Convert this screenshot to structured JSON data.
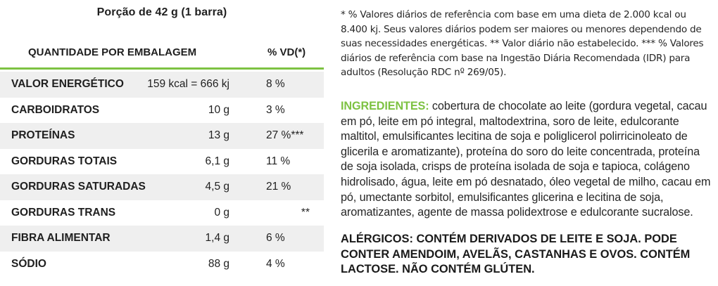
{
  "portion": "Porção de 42 g (1 barra)",
  "header": {
    "quantity": "QUANTIDADE POR EMBALAGEM",
    "vd": "% VD(*)"
  },
  "rows": [
    {
      "name": "VALOR ENERGÉTICO",
      "amount": "159 kcal = 666 kj",
      "vd": "8 %"
    },
    {
      "name": "CARBOIDRATOS",
      "amount": "10 g",
      "vd": "3 %"
    },
    {
      "name": "PROTEÍNAS",
      "amount": "13 g",
      "vd": "27 %***"
    },
    {
      "name": "GORDURAS TOTAIS",
      "amount": "6,1 g",
      "vd": "11 %"
    },
    {
      "name": "GORDURAS SATURADAS",
      "amount": "4,5 g",
      "vd": "21 %"
    },
    {
      "name": "GORDURAS TRANS",
      "amount": "0 g",
      "vd": "**"
    },
    {
      "name": "FIBRA ALIMENTAR",
      "amount": "1,4 g",
      "vd": "6 %"
    },
    {
      "name": "SÓDIO",
      "amount": "88 g",
      "vd": "4 %"
    }
  ],
  "footnote": "* % Valores diários de referência com base em uma dieta de 2.000 kcal ou 8.400 kj. Seus valores diários podem ser maiores ou menores dependendo de suas necessidades energéticas. ** Valor diário não estabelecido. *** % Valores diários de referência com base na Ingestão Diária Recomendada (IDR) para adultos (Resolução RDC nº 269/05).",
  "ingredients": {
    "label": "INGREDIENTES:",
    "text": " cobertura de chocolate ao leite (gordura vegetal, cacau em pó, leite em pó integral, maltodextrina, soro de leite, edulcorante maltitol, emulsificantes lecitina de soja e poliglicerol polirricinoleato de glicerila e aromatizante), proteína do soro do leite concentrada, proteína de soja isolada, crisps de proteína isolada de soja e tapioca, colágeno hidrolisado, água, leite em pó desnatado, óleo vegetal de milho, cacau em pó, umectante sorbitol, emulsificantes glicerina e lecitina de soja, aromatizantes, agente de massa polidextrose e edulcorante sucralose."
  },
  "allergens": "ALÉRGICOS: CONTÉM DERIVADOS DE LEITE E SOJA. PODE CONTER AMENDOIM, AVELÃS, CASTANHAS E OVOS. CONTÉM LACTOSE. NÃO CONTÉM GLÚTEN.",
  "colors": {
    "accent": "#7dc242",
    "row_shade": "#efefef",
    "text": "#1f1f1f"
  }
}
